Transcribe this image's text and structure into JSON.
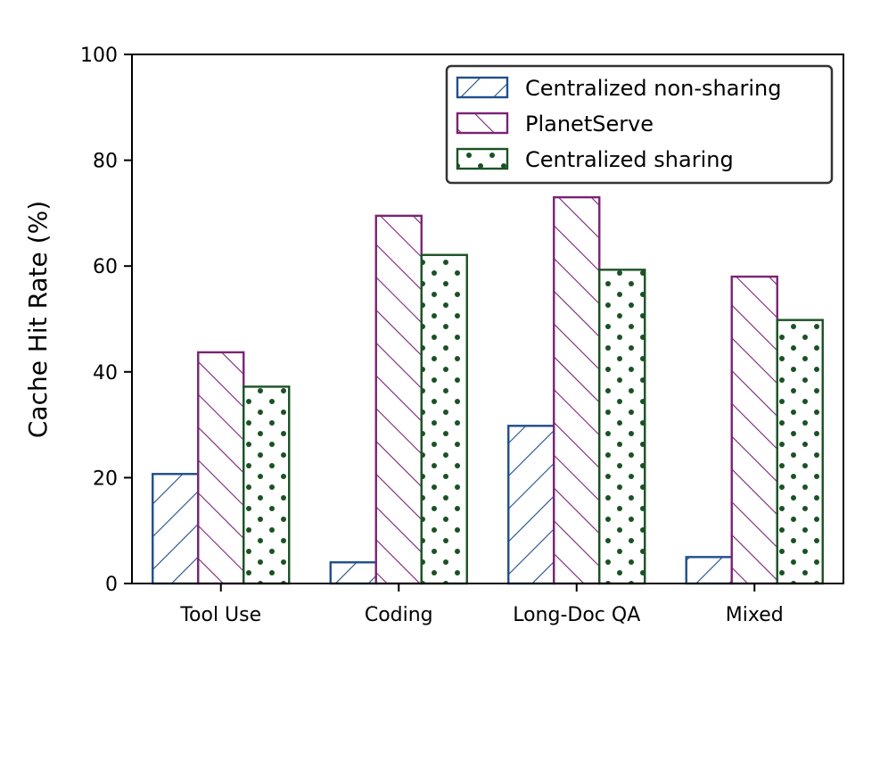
{
  "chart_data": {
    "type": "bar",
    "title": "",
    "xlabel": "",
    "ylabel": "Cache Hit Rate (%)",
    "ylim": [
      0,
      100
    ],
    "yticks": [
      "0",
      "20",
      "40",
      "60",
      "80",
      "100"
    ],
    "categories": [
      "Tool Use",
      "Coding",
      "Long-Doc QA",
      "Mixed"
    ],
    "series": [
      {
        "name": "Centralized non-sharing",
        "values": [
          20.7,
          4.0,
          29.8,
          5.0
        ],
        "color": "#1f4e8c",
        "pattern": "hatch-forward"
      },
      {
        "name": "PlanetServe",
        "values": [
          43.7,
          69.5,
          73.0,
          58.0
        ],
        "color": "#7b2374",
        "pattern": "hatch-back"
      },
      {
        "name": "Centralized sharing",
        "values": [
          37.2,
          62.1,
          59.3,
          49.8
        ],
        "color": "#1a5224",
        "pattern": "dots"
      }
    ],
    "grid": false,
    "legend_position": "top-right"
  }
}
